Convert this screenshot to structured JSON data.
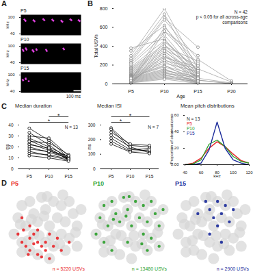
{
  "chart_data": [
    {
      "panel": "A",
      "type": "spectrogram",
      "ylabel": "kHz",
      "ylim": [
        35,
        110
      ],
      "yticks": [
        40,
        100
      ],
      "xlim": [
        0,
        800
      ],
      "tick_labels": "y",
      "color": "#e040e0",
      "panels": [
        {
          "name": "P5",
          "syllables": [
            [
              40,
              70,
              95,
              85
            ],
            [
              160,
              190,
              92,
              84
            ],
            [
              290,
              320,
              96,
              88
            ],
            [
              410,
              440,
              94,
              86
            ],
            [
              530,
              560,
              90,
              82
            ],
            [
              650,
              680,
              95,
              88
            ],
            [
              760,
              790,
              92,
              85
            ]
          ]
        },
        {
          "name": "P10",
          "syllables": [
            [
              20,
              40,
              90,
              80
            ],
            [
              60,
              80,
              95,
              85
            ],
            [
              150,
              175,
              88,
              78
            ],
            [
              200,
              215,
              92,
              84
            ],
            [
              330,
              350,
              90,
              80
            ],
            [
              560,
              580,
              94,
              86
            ]
          ]
        },
        {
          "name": "P15",
          "syllables": [
            [
              20,
              35,
              85,
              78
            ],
            [
              60,
              70,
              90,
              82
            ],
            [
              100,
              110,
              80,
              75
            ]
          ]
        }
      ],
      "scale_bar": {
        "length": 100,
        "label": "100 ms"
      }
    },
    {
      "panel": "B",
      "type": "line",
      "ylabel": "Total USVs",
      "xlabel": "Age",
      "categories": [
        "P5",
        "P10",
        "P15",
        "P20"
      ],
      "ylim": [
        0,
        800
      ],
      "yticks": [
        0,
        200,
        400,
        600,
        800
      ],
      "color": "#999999",
      "marker": "circle",
      "annotations": [
        "N = 42",
        "p < 0.05 for all across-age comparisons"
      ],
      "series": [
        {
          "values": [
            380,
            480,
            60,
            null
          ]
        },
        {
          "values": [
            350,
            620,
            120,
            null
          ]
        },
        {
          "values": [
            300,
            800,
            160,
            20
          ]
        },
        {
          "values": [
            270,
            740,
            100,
            null
          ]
        },
        {
          "values": [
            250,
            700,
            390,
            null
          ]
        },
        {
          "values": [
            230,
            680,
            260,
            30
          ]
        },
        {
          "values": [
            220,
            560,
            300,
            null
          ]
        },
        {
          "values": [
            200,
            520,
            90,
            null
          ]
        },
        {
          "values": [
            180,
            460,
            150,
            null
          ]
        },
        {
          "values": [
            170,
            420,
            80,
            null
          ]
        },
        {
          "values": [
            160,
            400,
            240,
            null
          ]
        },
        {
          "values": [
            150,
            380,
            60,
            10
          ]
        },
        {
          "values": [
            140,
            360,
            200,
            null
          ]
        },
        {
          "values": [
            130,
            340,
            110,
            null
          ]
        },
        {
          "values": [
            120,
            320,
            50,
            null
          ]
        },
        {
          "values": [
            110,
            300,
            30,
            null
          ]
        },
        {
          "values": [
            100,
            280,
            180,
            null
          ]
        },
        {
          "values": [
            95,
            260,
            70,
            null
          ]
        },
        {
          "values": [
            90,
            240,
            40,
            5
          ]
        },
        {
          "values": [
            85,
            220,
            130,
            null
          ]
        },
        {
          "values": [
            80,
            200,
            20,
            null
          ]
        },
        {
          "values": [
            75,
            190,
            90,
            null
          ]
        },
        {
          "values": [
            70,
            180,
            60,
            null
          ]
        },
        {
          "values": [
            65,
            160,
            10,
            null
          ]
        },
        {
          "values": [
            60,
            150,
            50,
            null
          ]
        },
        {
          "values": [
            55,
            140,
            80,
            null
          ]
        },
        {
          "values": [
            50,
            130,
            30,
            null
          ]
        },
        {
          "values": [
            45,
            120,
            20,
            null
          ]
        },
        {
          "values": [
            40,
            110,
            70,
            null
          ]
        },
        {
          "values": [
            35,
            100,
            10,
            null
          ]
        },
        {
          "values": [
            30,
            90,
            40,
            0
          ]
        },
        {
          "values": [
            25,
            80,
            20,
            null
          ]
        },
        {
          "values": [
            20,
            70,
            10,
            null
          ]
        },
        {
          "values": [
            15,
            60,
            30,
            null
          ]
        },
        {
          "values": [
            10,
            50,
            5,
            null
          ]
        },
        {
          "values": [
            10,
            400,
            120,
            null
          ]
        },
        {
          "values": [
            5,
            560,
            200,
            null
          ]
        },
        {
          "values": [
            20,
            300,
            100,
            null
          ]
        },
        {
          "values": [
            30,
            250,
            160,
            null
          ]
        },
        {
          "values": [
            0,
            350,
            60,
            null
          ]
        },
        {
          "values": [
            40,
            600,
            220,
            null
          ]
        },
        {
          "values": [
            60,
            450,
            140,
            null
          ]
        }
      ]
    },
    {
      "panel": "C",
      "type": "line",
      "title": "Median duration",
      "ylabel": "ms",
      "categories": [
        "P5",
        "P10",
        "P15"
      ],
      "ylim": [
        0,
        40
      ],
      "yticks": [
        0,
        10,
        20,
        30,
        40
      ],
      "color": "#000000",
      "marker": "circle",
      "annotations": [
        "N = 13"
      ],
      "significance": [
        {
          "from": "P5",
          "to": "P15",
          "label": "*"
        },
        {
          "from": "P10",
          "to": "P15",
          "label": "*"
        }
      ],
      "series": [
        {
          "values": [
            37,
            26,
            10
          ]
        },
        {
          "values": [
            33,
            22,
            9
          ]
        },
        {
          "values": [
            30,
            28,
            12
          ]
        },
        {
          "values": [
            28,
            20,
            11
          ]
        },
        {
          "values": [
            26,
            18,
            10
          ]
        },
        {
          "values": [
            25,
            24,
            13
          ]
        },
        {
          "values": [
            23,
            17,
            9
          ]
        },
        {
          "values": [
            22,
            19,
            8
          ]
        },
        {
          "values": [
            20,
            15,
            10
          ]
        },
        {
          "values": [
            18,
            16,
            12
          ]
        },
        {
          "values": [
            16,
            12,
            8
          ]
        },
        {
          "values": [
            14,
            13,
            9
          ]
        },
        {
          "values": [
            12,
            10,
            7
          ]
        }
      ]
    },
    {
      "type": "line",
      "title": "Median ISI",
      "ylabel": "ms",
      "categories": [
        "P5",
        "P10",
        "P15"
      ],
      "ylim": [
        0,
        300
      ],
      "yticks": [
        0,
        100,
        200,
        300
      ],
      "color": "#000000",
      "marker": "circle",
      "annotations": [
        "N = 7"
      ],
      "significance": [
        {
          "from": "P5",
          "to": "P10",
          "label": "*"
        },
        {
          "from": "P5",
          "to": "P15",
          "label": "*"
        }
      ],
      "series": [
        {
          "values": [
            280,
            160,
            150
          ]
        },
        {
          "values": [
            270,
            140,
            120
          ]
        },
        {
          "values": [
            250,
            170,
            160
          ]
        },
        {
          "values": [
            230,
            150,
            110
          ]
        },
        {
          "values": [
            210,
            130,
            140
          ]
        },
        {
          "values": [
            190,
            120,
            130
          ]
        },
        {
          "values": [
            170,
            115,
            105
          ]
        }
      ]
    },
    {
      "type": "line",
      "title": "Mean pitch distributions",
      "xlabel": "kHz",
      "ylabel": "Proportion of observations",
      "x": [
        40,
        50,
        60,
        70,
        80,
        90,
        100,
        110,
        120
      ],
      "xlim": [
        40,
        120
      ],
      "xticks": [
        40,
        60,
        80,
        100,
        120
      ],
      "ylim": [
        0,
        0.6
      ],
      "yticks": [
        0,
        0.2,
        0.4,
        0.6
      ],
      "legend": "top-left",
      "annotations": [
        "N = 13"
      ],
      "series": [
        {
          "name": "P5",
          "color": "#e8262a",
          "values": [
            0,
            0.02,
            0.08,
            0.2,
            0.28,
            0.22,
            0.13,
            0.05,
            0.02
          ]
        },
        {
          "name": "P10",
          "color": "#2ca02c",
          "values": [
            0,
            0.01,
            0.06,
            0.25,
            0.3,
            0.22,
            0.1,
            0.04,
            0.02
          ]
        },
        {
          "name": "P15",
          "color": "#1a2a9a",
          "values": [
            0,
            0,
            0.02,
            0.18,
            0.52,
            0.2,
            0.06,
            0.02,
            0
          ]
        }
      ]
    },
    {
      "panel": "D",
      "type": "scatter",
      "tick_labels": false,
      "background": {
        "color": "#d6d6d6",
        "points": [
          [
            1,
            4
          ],
          [
            1.5,
            6
          ],
          [
            2,
            3
          ],
          [
            2,
            7.5
          ],
          [
            2.5,
            5
          ],
          [
            3,
            2
          ],
          [
            3,
            8
          ],
          [
            3.5,
            4
          ],
          [
            3.5,
            6.5
          ],
          [
            4,
            1.5
          ],
          [
            4,
            5.5
          ],
          [
            4.5,
            8.5
          ],
          [
            5,
            3
          ],
          [
            5,
            7
          ],
          [
            5.5,
            1
          ],
          [
            5.5,
            5
          ],
          [
            6,
            8
          ],
          [
            6,
            2.5
          ],
          [
            6.5,
            6
          ],
          [
            7,
            4
          ],
          [
            7,
            7.5
          ],
          [
            7.5,
            2
          ],
          [
            7.5,
            5.5
          ],
          [
            8,
            8
          ],
          [
            8,
            3.5
          ],
          [
            8.5,
            6.5
          ],
          [
            9,
            2.5
          ],
          [
            9,
            5
          ],
          [
            9.5,
            7
          ],
          [
            2.8,
            3.2
          ],
          [
            4.2,
            3.8
          ],
          [
            5.8,
            3.8
          ],
          [
            6.8,
            2.8
          ],
          [
            3.2,
            5.8
          ],
          [
            4.8,
            6.2
          ],
          [
            2,
            1.8
          ],
          [
            8.8,
            4.2
          ],
          [
            1.8,
            5.2
          ],
          [
            5.2,
            8.6
          ],
          [
            7.2,
            8.8
          ]
        ]
      },
      "panels": [
        {
          "name": "P5",
          "color": "#e8262a",
          "annotation": "n = 5220 USVs",
          "points": [
            [
              2,
              3
            ],
            [
              2.5,
              2.5
            ],
            [
              3,
              2
            ],
            [
              3,
              3.5
            ],
            [
              3.5,
              4
            ],
            [
              4,
              1.5
            ],
            [
              4,
              3
            ],
            [
              4.5,
              2.5
            ],
            [
              5,
              3
            ],
            [
              5,
              2
            ],
            [
              5.5,
              1
            ],
            [
              2.2,
              4.5
            ],
            [
              3,
              5
            ],
            [
              4,
              4.5
            ],
            [
              6,
              2.5
            ],
            [
              6.5,
              3.5
            ],
            [
              7,
              2
            ],
            [
              1.5,
              4
            ],
            [
              2.8,
              1.5
            ],
            [
              5.5,
              4
            ],
            [
              3.5,
              2.8
            ],
            [
              4.5,
              1.2
            ],
            [
              8,
              3
            ],
            [
              2,
              6
            ]
          ]
        },
        {
          "name": "P10",
          "color": "#2ca02c",
          "annotation": "n = 13480 USVs",
          "points": [
            [
              1,
              4
            ],
            [
              1.5,
              6
            ],
            [
              2,
              7.5
            ],
            [
              2.5,
              5
            ],
            [
              3,
              8
            ],
            [
              3.5,
              6.5
            ],
            [
              4,
              5.5
            ],
            [
              4.5,
              8.5
            ],
            [
              5,
              7
            ],
            [
              5.5,
              5
            ],
            [
              6,
              8
            ],
            [
              6.5,
              6
            ],
            [
              7,
              4
            ],
            [
              7,
              7.5
            ],
            [
              7.5,
              5.5
            ],
            [
              8,
              8
            ],
            [
              8.5,
              6.5
            ],
            [
              9,
              5
            ],
            [
              9.5,
              7
            ],
            [
              3,
              2
            ],
            [
              5,
              3
            ],
            [
              7.5,
              2
            ],
            [
              9,
              2.5
            ],
            [
              4.8,
              6.2
            ],
            [
              6.8,
              2.8
            ],
            [
              2,
              3
            ],
            [
              8,
              3.5
            ],
            [
              3.2,
              5.8
            ],
            [
              5.2,
              8.6
            ]
          ]
        },
        {
          "name": "P15",
          "color": "#1a2a9a",
          "annotation": "n = 2900 USVs",
          "points": [
            [
              5,
              7
            ],
            [
              5.5,
              6
            ],
            [
              6,
              8
            ],
            [
              6.5,
              6.5
            ],
            [
              7,
              7.5
            ],
            [
              4.5,
              8
            ],
            [
              6,
              5
            ],
            [
              3.5,
              6.5
            ],
            [
              7.5,
              5.5
            ],
            [
              8,
              7
            ],
            [
              5,
              4
            ],
            [
              6.5,
              3
            ]
          ]
        }
      ]
    }
  ]
}
